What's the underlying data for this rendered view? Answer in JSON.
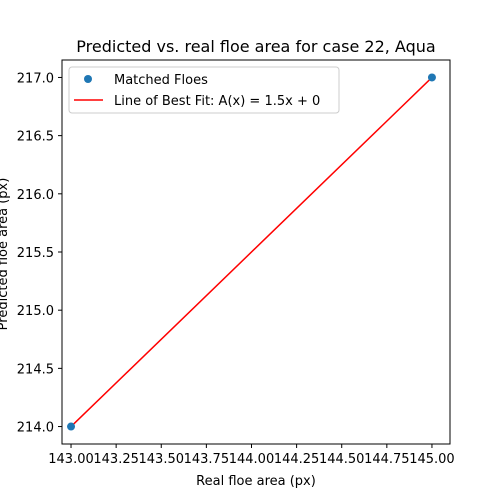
{
  "chart_data": {
    "type": "scatter",
    "title": "Predicted vs. real floe area  for case 22, Aqua",
    "xlabel": "Real floe area (px)",
    "ylabel": "Predicted floe area (px)",
    "xlim": [
      142.95,
      145.1
    ],
    "ylim": [
      213.85,
      217.15
    ],
    "x_ticks": [
      143.0,
      143.25,
      143.5,
      143.75,
      144.0,
      144.25,
      144.5,
      144.75,
      145.0
    ],
    "x_tick_labels": [
      "143.00",
      "143.25",
      "143.50",
      "143.75",
      "144.00",
      "144.25",
      "144.50",
      "144.75",
      "145.00"
    ],
    "y_ticks": [
      214.0,
      214.5,
      215.0,
      215.5,
      216.0,
      216.5,
      217.0
    ],
    "y_tick_labels": [
      "214.0",
      "214.5",
      "215.0",
      "215.5",
      "216.0",
      "216.5",
      "217.0"
    ],
    "grid": false,
    "legend_placement": "top-left",
    "series": [
      {
        "name": "Matched Floes",
        "kind": "scatter",
        "color": "#1f77b4",
        "x": [
          143.0,
          145.0
        ],
        "y": [
          214.0,
          217.0
        ]
      },
      {
        "name": "Line of Best Fit: A(x) = 1.5x + 0",
        "kind": "line",
        "color": "#ff0000",
        "x": [
          143.0,
          145.0
        ],
        "y": [
          214.0,
          217.0
        ]
      }
    ]
  }
}
